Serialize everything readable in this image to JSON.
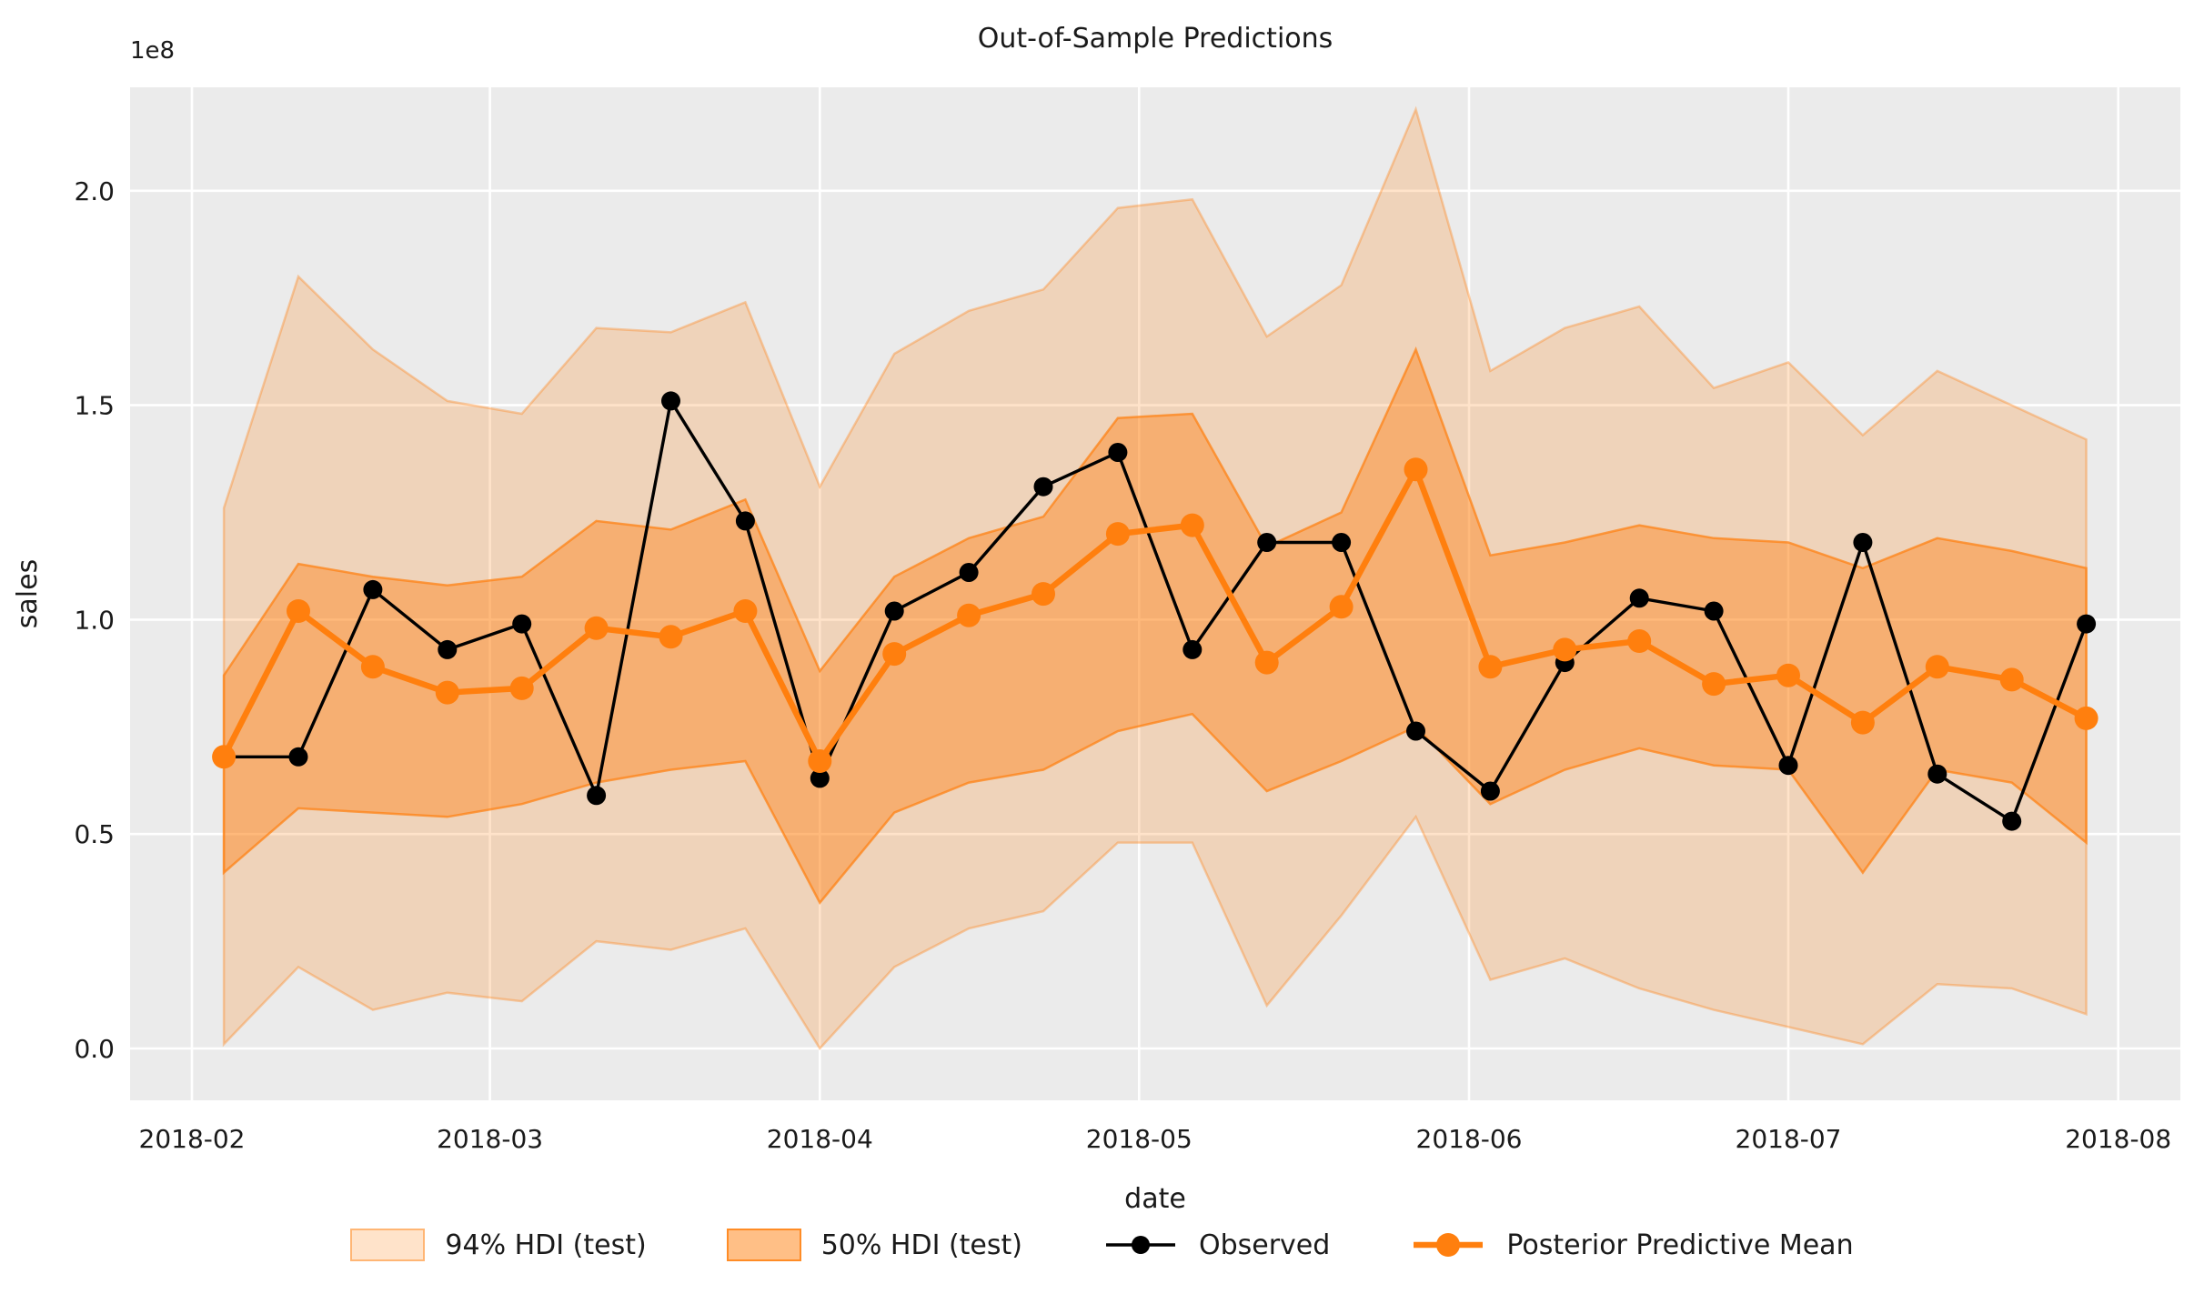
{
  "figure": {
    "title": "Out-of-Sample Predictions",
    "background_color": "#ffffff",
    "plot_background_color": "#ebebeb",
    "grid_color": "#ffffff",
    "text_color": "#1a1a1a",
    "accent_color": "#ff7f0e",
    "observed_color": "#000000"
  },
  "axes": {
    "xlabel": "date",
    "ylabel": "sales",
    "offset_text": "1e8",
    "x_ticklabels": [
      "2018-02",
      "2018-03",
      "2018-04",
      "2018-05",
      "2018-06",
      "2018-07",
      "2018-08"
    ],
    "y_ticklabels": [
      "0.0",
      "0.5",
      "1.0",
      "1.5",
      "2.0"
    ]
  },
  "legend": {
    "items": [
      {
        "label": "94% HDI (test)",
        "type": "patch",
        "fill": "rgba(255,127,14,0.22)",
        "edge": "rgba(255,127,14,0.45)"
      },
      {
        "label": "50% HDI (test)",
        "type": "patch",
        "fill": "rgba(255,127,14,0.5)",
        "edge": "rgba(255,127,14,0.8)"
      },
      {
        "label": "Observed",
        "type": "line-marker",
        "color": "#000000",
        "line_width": 3.4,
        "marker_radius": 10
      },
      {
        "label": "Posterior Predictive Mean",
        "type": "line-marker",
        "color": "#ff7f0e",
        "line_width": 6.5,
        "marker_radius": 13
      }
    ]
  },
  "chart_data": {
    "type": "line",
    "title": "Out-of-Sample Predictions",
    "xlabel": "date",
    "ylabel": "sales",
    "y_unit": "1e8",
    "ylim": [
      -0.12,
      2.24
    ],
    "grid": true,
    "legend_position": "bottom",
    "x_tick_dates": [
      "2018-02-01",
      "2018-03-01",
      "2018-04-01",
      "2018-05-01",
      "2018-06-01",
      "2018-07-01",
      "2018-08-01"
    ],
    "x": [
      "2018-02-04",
      "2018-02-11",
      "2018-02-18",
      "2018-02-25",
      "2018-03-04",
      "2018-03-11",
      "2018-03-18",
      "2018-03-25",
      "2018-04-01",
      "2018-04-08",
      "2018-04-15",
      "2018-04-22",
      "2018-04-29",
      "2018-05-06",
      "2018-05-13",
      "2018-05-20",
      "2018-05-27",
      "2018-06-03",
      "2018-06-10",
      "2018-06-17",
      "2018-06-24",
      "2018-07-01",
      "2018-07-08",
      "2018-07-15",
      "2018-07-22",
      "2018-07-29"
    ],
    "series": [
      {
        "name": "94% HDI (test)",
        "type": "band",
        "fill": "rgba(255,127,14,0.22)",
        "edge": "rgba(255,127,14,0.35)",
        "upper": [
          1.26,
          1.8,
          1.63,
          1.51,
          1.48,
          1.68,
          1.67,
          1.74,
          1.31,
          1.62,
          1.72,
          1.77,
          1.96,
          1.98,
          1.66,
          1.78,
          2.19,
          1.58,
          1.68,
          1.73,
          1.54,
          1.6,
          1.43,
          1.58,
          1.5,
          1.42
        ],
        "lower": [
          0.01,
          0.19,
          0.09,
          0.13,
          0.11,
          0.25,
          0.23,
          0.28,
          0.0,
          0.19,
          0.28,
          0.32,
          0.48,
          0.48,
          0.1,
          0.31,
          0.54,
          0.16,
          0.21,
          0.14,
          0.09,
          0.05,
          0.01,
          0.15,
          0.14,
          0.08
        ]
      },
      {
        "name": "50% HDI (test)",
        "type": "band",
        "fill": "rgba(255,127,14,0.42)",
        "edge": "rgba(255,127,14,0.7)",
        "upper": [
          0.87,
          1.13,
          1.1,
          1.08,
          1.1,
          1.23,
          1.21,
          1.28,
          0.88,
          1.1,
          1.19,
          1.24,
          1.47,
          1.48,
          1.17,
          1.25,
          1.63,
          1.15,
          1.18,
          1.22,
          1.19,
          1.18,
          1.12,
          1.19,
          1.16,
          1.12
        ],
        "lower": [
          0.41,
          0.56,
          0.55,
          0.54,
          0.57,
          0.62,
          0.65,
          0.67,
          0.34,
          0.55,
          0.62,
          0.65,
          0.74,
          0.78,
          0.6,
          0.67,
          0.75,
          0.57,
          0.65,
          0.7,
          0.66,
          0.65,
          0.41,
          0.65,
          0.62,
          0.48
        ]
      },
      {
        "name": "Observed",
        "type": "line+markers",
        "color": "#000000",
        "values": [
          0.68,
          0.68,
          1.07,
          0.93,
          0.99,
          0.59,
          1.51,
          1.23,
          0.63,
          1.02,
          1.11,
          1.31,
          1.39,
          0.93,
          1.18,
          1.18,
          0.74,
          0.6,
          0.9,
          1.05,
          1.02,
          0.66,
          1.18,
          0.64,
          0.53,
          0.99
        ]
      },
      {
        "name": "Posterior Predictive Mean",
        "type": "line+markers",
        "color": "#ff7f0e",
        "values": [
          0.68,
          1.02,
          0.89,
          0.83,
          0.84,
          0.98,
          0.96,
          1.02,
          0.67,
          0.92,
          1.01,
          1.06,
          1.2,
          1.22,
          0.9,
          1.03,
          1.35,
          0.89,
          0.93,
          0.95,
          0.85,
          0.87,
          0.76,
          0.89,
          0.86,
          0.77
        ]
      }
    ]
  }
}
